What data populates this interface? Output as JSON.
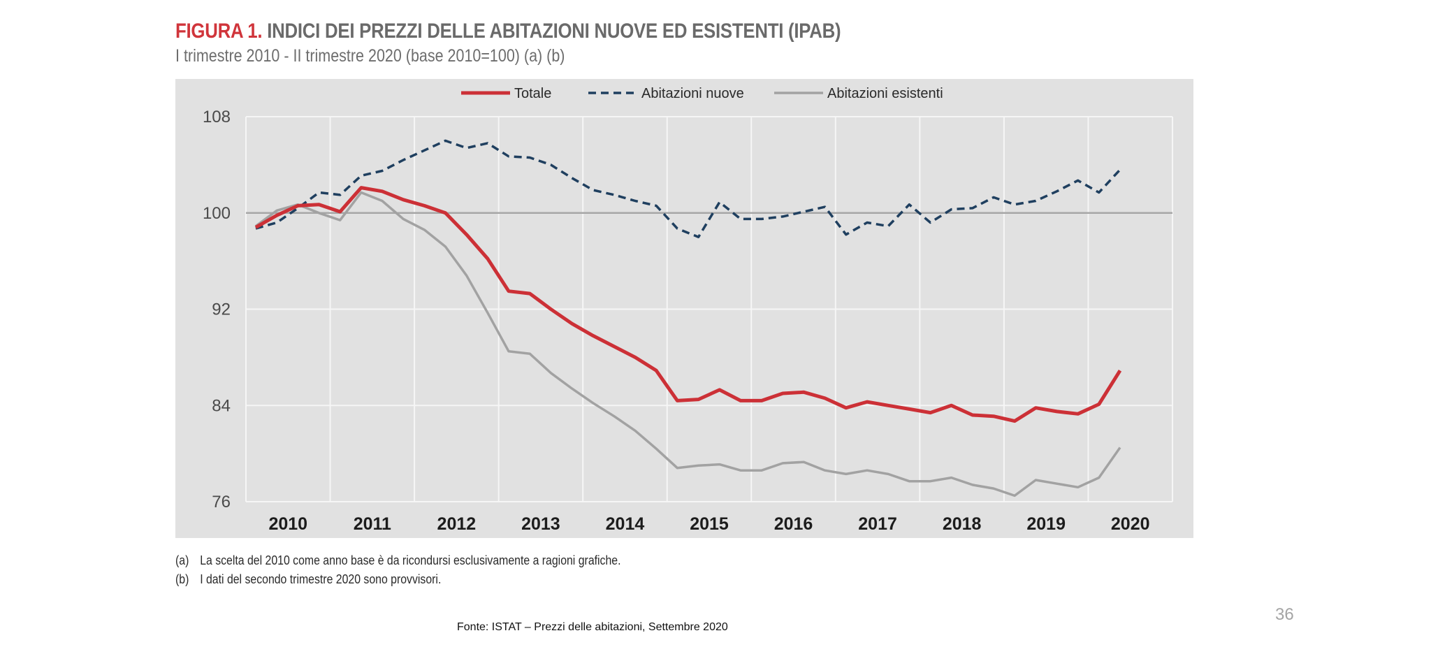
{
  "figure": {
    "label": "FIGURA 1.",
    "title": "INDICI DEI PREZZI DELLE ABITAZIONI NUOVE ED ESISTENTI (IPAB)",
    "subtitle": "I trimestre 2010 - II trimestre 2020 (base 2010=100) (a) (b)"
  },
  "colors": {
    "background": "#e1e1e1",
    "grid": "#f6f6f6",
    "baseline": "#a6a6a6",
    "totale": "#cc3036",
    "nuove": "#1f3f5f",
    "esistenti": "#a2a2a2",
    "tick_text": "#4a4a4a",
    "year_text": "#1c1c1c"
  },
  "chart_data": {
    "type": "line",
    "title": "INDICI DEI PREZZI DELLE ABITAZIONI NUOVE ED ESISTENTI (IPAB)",
    "xlabel": "",
    "ylabel": "",
    "ylim": [
      76,
      108
    ],
    "yticks": [
      76,
      84,
      92,
      100,
      108
    ],
    "reference_line": 100,
    "legend_position": "top-center",
    "year_labels": [
      "2010",
      "2011",
      "2012",
      "2013",
      "2014",
      "2015",
      "2016",
      "2017",
      "2018",
      "2019",
      "2020"
    ],
    "x": [
      "2010 T1",
      "2010 T2",
      "2010 T3",
      "2010 T4",
      "2011 T1",
      "2011 T2",
      "2011 T3",
      "2011 T4",
      "2012 T1",
      "2012 T2",
      "2012 T3",
      "2012 T4",
      "2013 T1",
      "2013 T2",
      "2013 T3",
      "2013 T4",
      "2014 T1",
      "2014 T2",
      "2014 T3",
      "2014 T4",
      "2015 T1",
      "2015 T2",
      "2015 T3",
      "2015 T4",
      "2016 T1",
      "2016 T2",
      "2016 T3",
      "2016 T4",
      "2017 T1",
      "2017 T2",
      "2017 T3",
      "2017 T4",
      "2018 T1",
      "2018 T2",
      "2018 T3",
      "2018 T4",
      "2019 T1",
      "2019 T2",
      "2019 T3",
      "2019 T4",
      "2020 T1",
      "2020 T2"
    ],
    "series": [
      {
        "name": "Totale",
        "style": "solid",
        "values": [
          98.8,
          99.8,
          100.6,
          100.7,
          100.1,
          102.1,
          101.8,
          101.1,
          100.6,
          100.0,
          98.2,
          96.2,
          93.5,
          93.3,
          92.0,
          90.8,
          89.8,
          88.9,
          88.0,
          86.9,
          84.4,
          84.5,
          85.3,
          84.4,
          84.4,
          85.0,
          85.1,
          84.6,
          83.8,
          84.3,
          84.0,
          83.7,
          83.4,
          84.0,
          83.2,
          83.1,
          82.7,
          83.8,
          83.5,
          83.3,
          84.1,
          86.9
        ]
      },
      {
        "name": "Abitazioni nuove",
        "style": "dashed",
        "values": [
          98.7,
          99.2,
          100.4,
          101.7,
          101.5,
          103.1,
          103.5,
          104.4,
          105.2,
          106.0,
          105.4,
          105.8,
          104.7,
          104.6,
          104.0,
          102.9,
          101.9,
          101.5,
          101.0,
          100.6,
          98.7,
          98.0,
          100.9,
          99.5,
          99.5,
          99.7,
          100.1,
          100.5,
          98.2,
          99.2,
          98.9,
          100.7,
          99.2,
          100.3,
          100.4,
          101.3,
          100.7,
          101.0,
          101.8,
          102.7,
          101.7,
          103.6
        ]
      },
      {
        "name": "Abitazioni esistenti",
        "style": "solid-thin",
        "values": [
          98.9,
          100.2,
          100.7,
          100.0,
          99.4,
          101.7,
          101.0,
          99.5,
          98.6,
          97.2,
          94.8,
          91.7,
          88.5,
          88.3,
          86.7,
          85.4,
          84.2,
          83.1,
          81.9,
          80.4,
          78.8,
          79.0,
          79.1,
          78.6,
          78.6,
          79.2,
          79.3,
          78.6,
          78.3,
          78.6,
          78.3,
          77.7,
          77.7,
          78.0,
          77.4,
          77.1,
          76.5,
          77.8,
          77.5,
          77.2,
          78.0,
          80.5
        ]
      }
    ]
  },
  "notes": [
    {
      "key": "(a)",
      "text": "La scelta del 2010 come anno base è da ricondursi esclusivamente a ragioni grafiche."
    },
    {
      "key": "(b)",
      "text": "I dati del secondo trimestre 2020 sono provvisori."
    }
  ],
  "source": "Fonte: ISTAT – Prezzi delle abitazioni, Settembre 2020",
  "page_number": "36"
}
